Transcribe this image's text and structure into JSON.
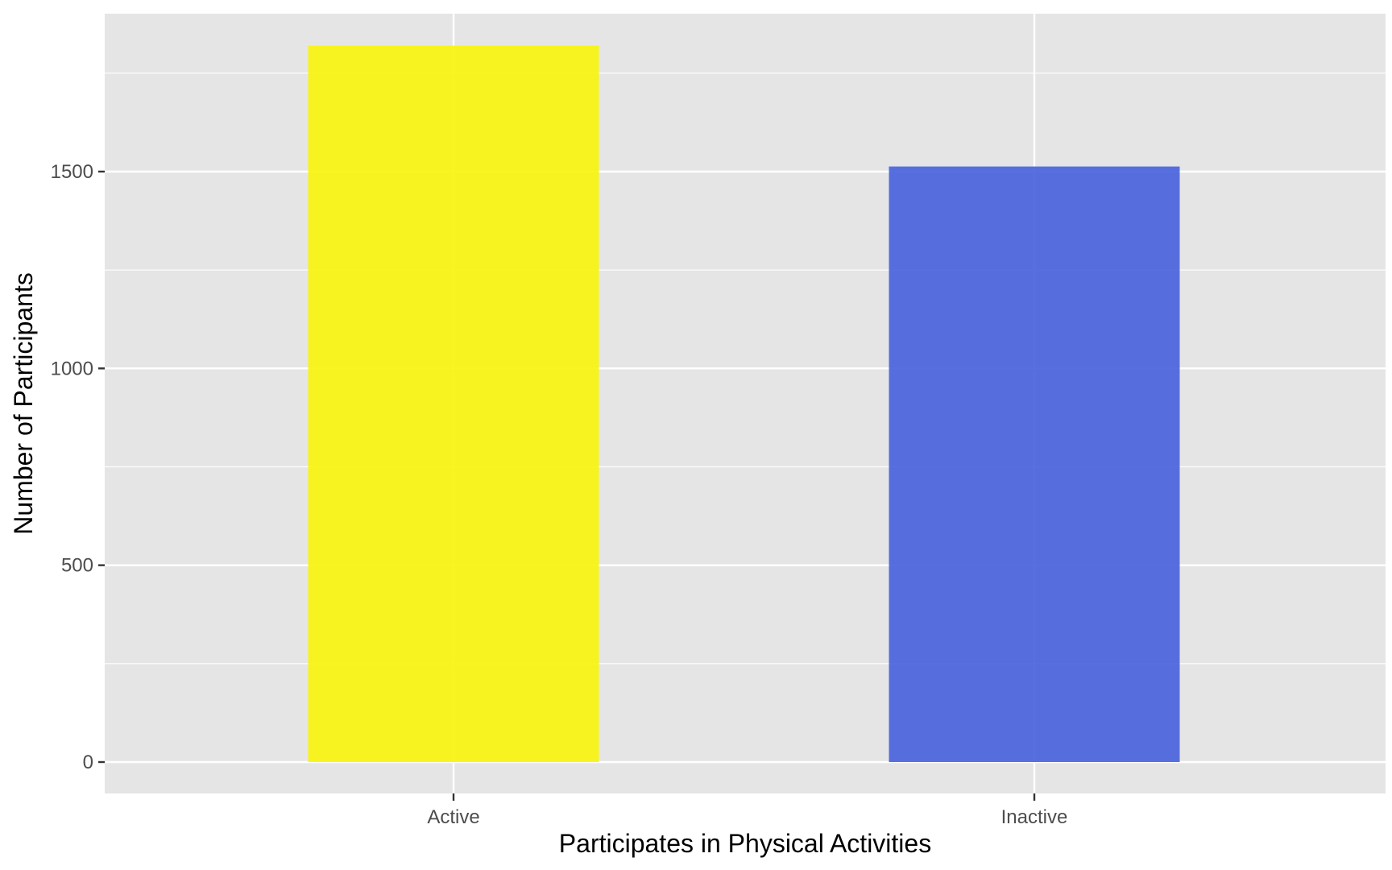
{
  "chart_data": {
    "type": "bar",
    "categories": [
      "Active",
      "Inactive"
    ],
    "values": [
      1820,
      1513
    ],
    "colors": [
      "#f8f40f",
      "#4a64dc"
    ],
    "xlabel": "Participates in Physical Activities",
    "ylabel": "Number of Participants",
    "ylim": [
      0,
      1900
    ],
    "yticks": [
      0,
      500,
      1000,
      1500
    ],
    "ytick_labels": [
      "0",
      "500",
      "1000",
      "1500"
    ],
    "ygrid_minor": [
      250,
      750,
      1250,
      1750
    ],
    "grid": true,
    "panel_color": "#e5e5e5",
    "grid_color": "#ffffff",
    "legend": "none"
  }
}
